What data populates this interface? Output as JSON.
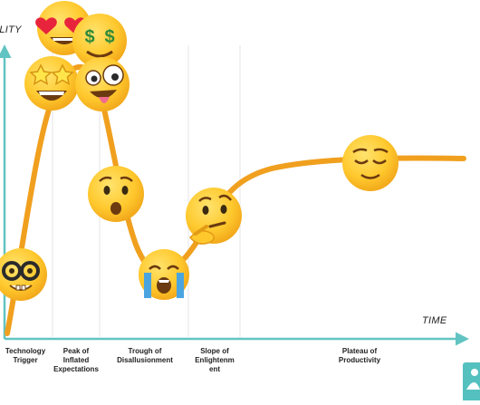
{
  "axes": {
    "y_label": "ILITY",
    "x_label": "TIME",
    "axis_color": "#62c4c2"
  },
  "curve_color": "#f0a01e",
  "phases": [
    {
      "label_lines": [
        "Technology",
        "Trigger"
      ]
    },
    {
      "label_lines": [
        "Peak of",
        "Inflated",
        "Expectations"
      ]
    },
    {
      "label_lines": [
        "Trough of",
        "Disallusionment"
      ]
    },
    {
      "label_lines": [
        "Slope of",
        "Enlightenment"
      ]
    },
    {
      "label_lines": [
        "Plateau of",
        "Productivity"
      ]
    }
  ],
  "emojis": [
    {
      "name": "nerd-face-icon"
    },
    {
      "name": "heart-eyes-icon"
    },
    {
      "name": "money-mouth-icon"
    },
    {
      "name": "star-struck-icon"
    },
    {
      "name": "zany-face-icon"
    },
    {
      "name": "worried-face-icon"
    },
    {
      "name": "loudly-crying-icon"
    },
    {
      "name": "thinking-face-icon"
    },
    {
      "name": "relieved-face-icon"
    }
  ],
  "colors": {
    "emoji_yellow": "#ffcc33",
    "emoji_shade": "#e8a317",
    "divider": "#e6e6e6",
    "badge": "#54c1bf"
  }
}
